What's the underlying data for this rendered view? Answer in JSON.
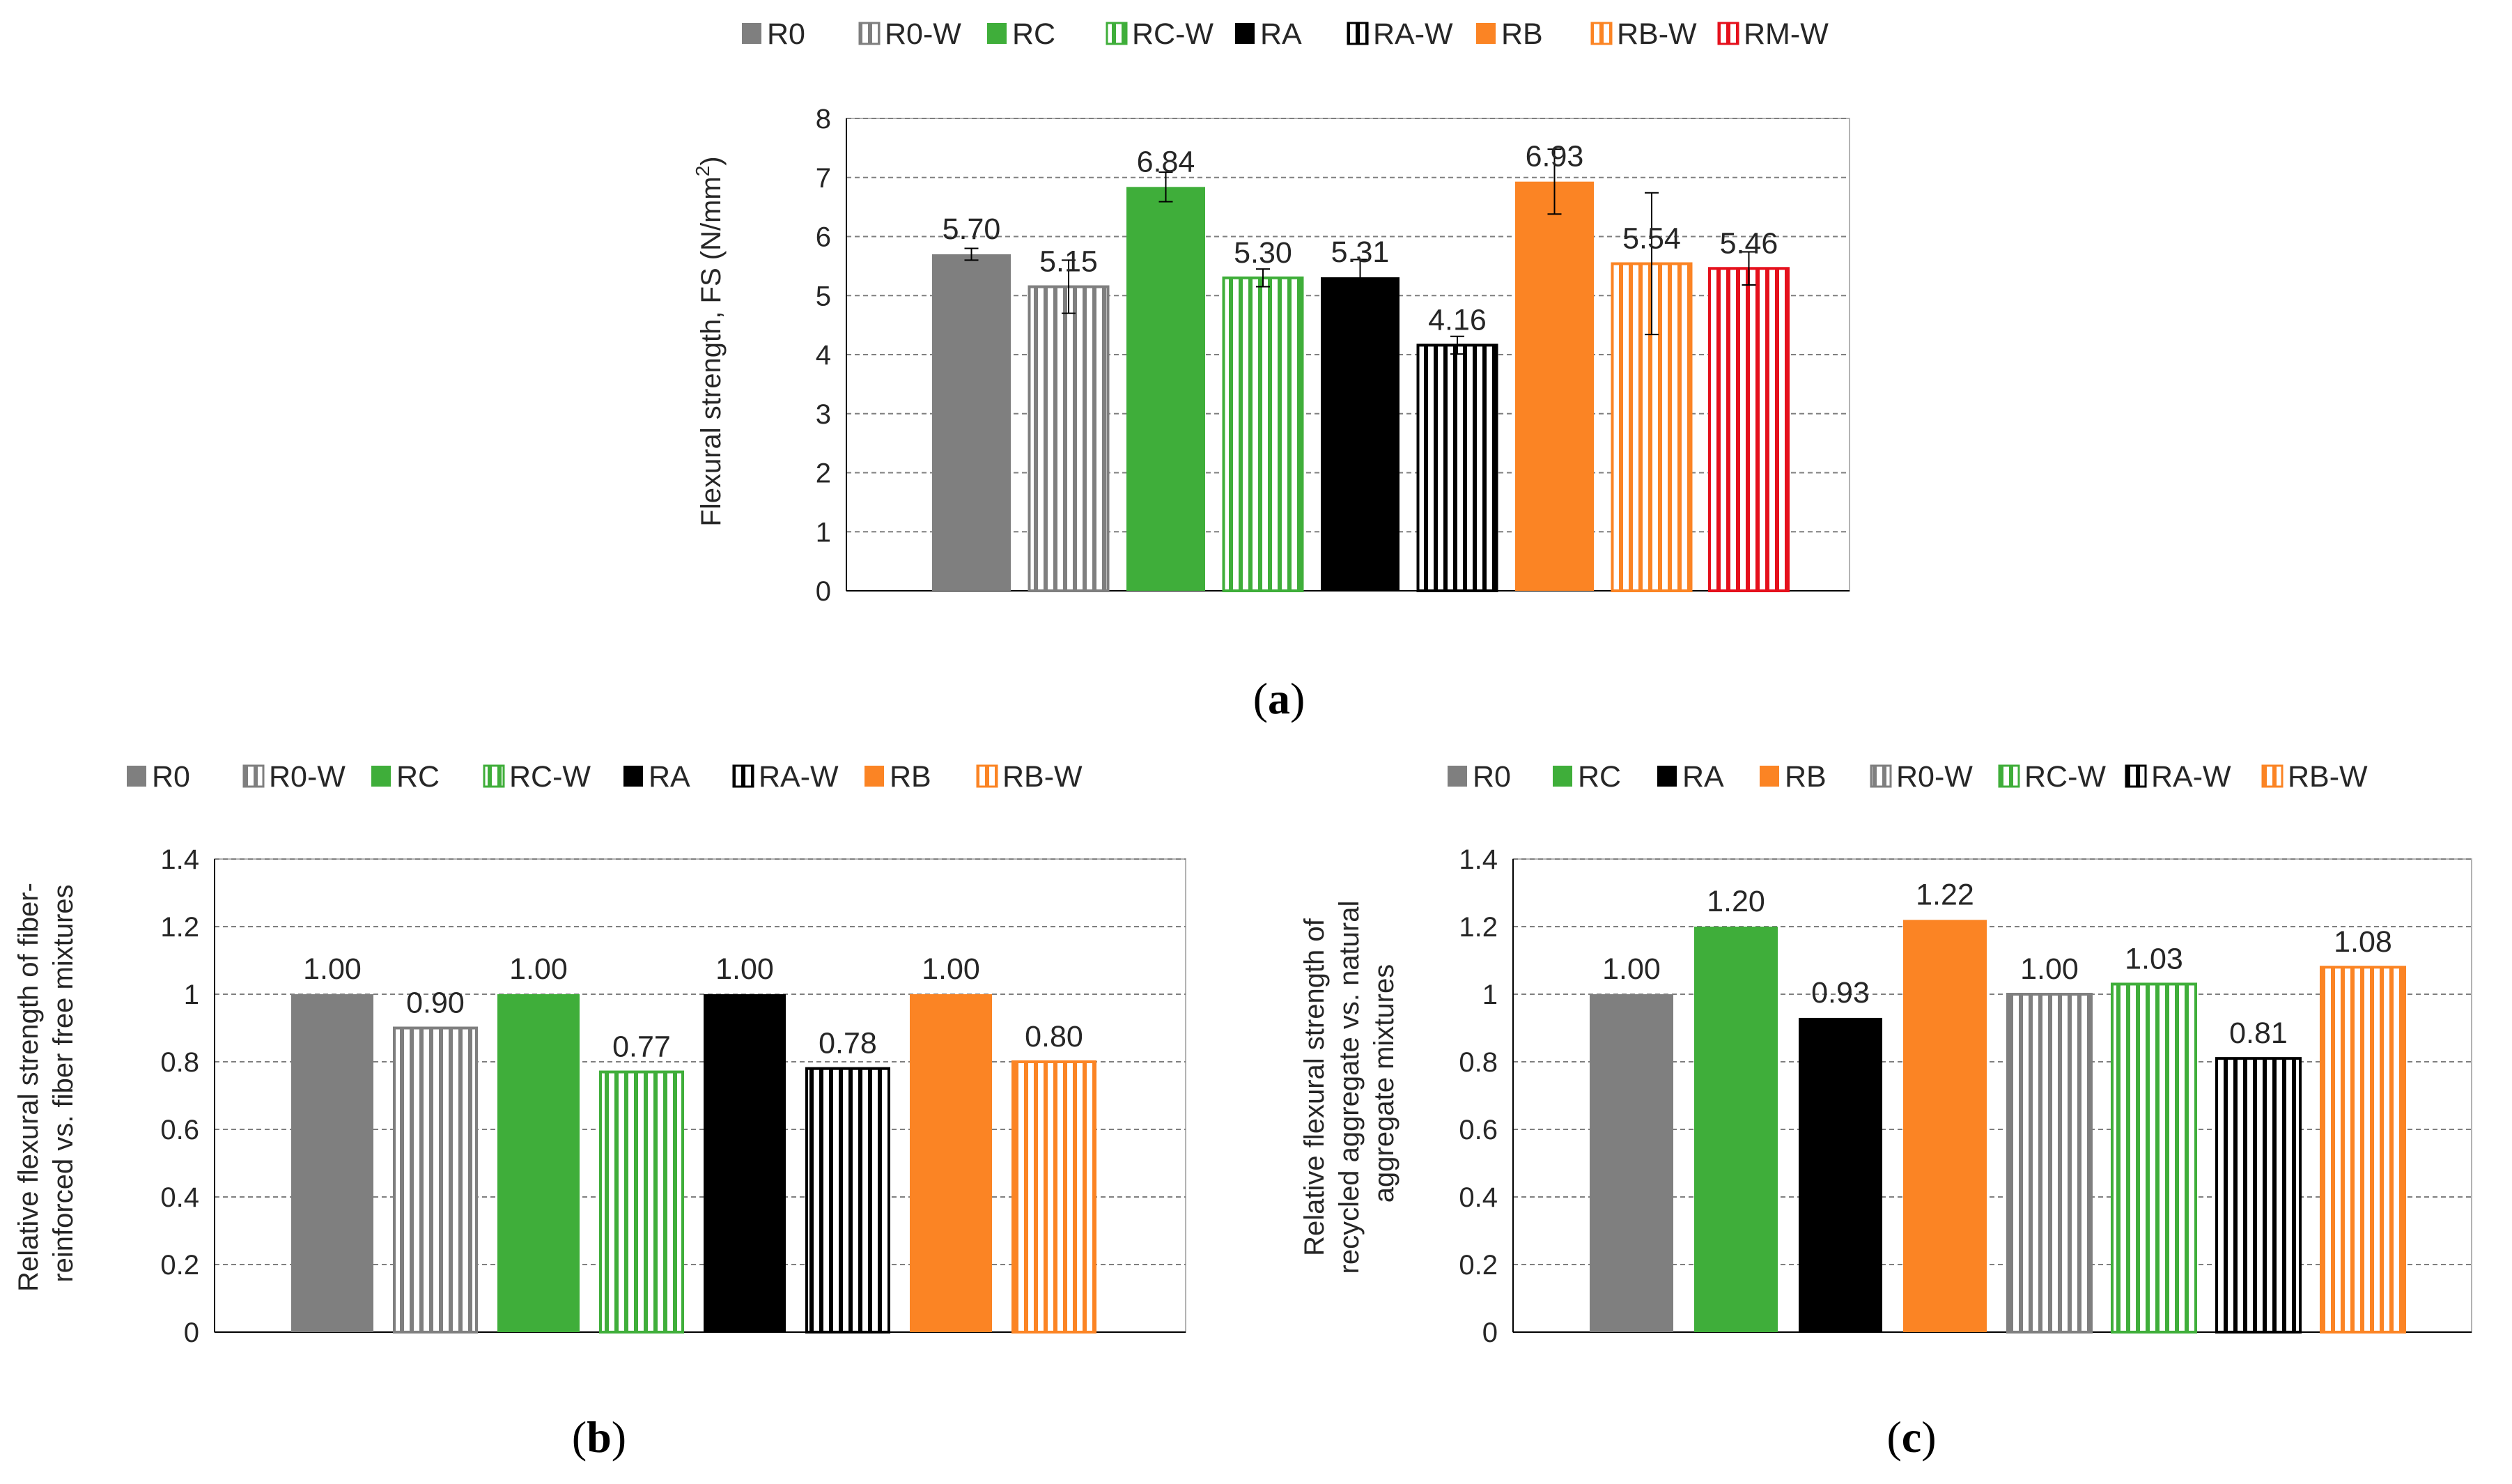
{
  "colors": {
    "R0": "#7f7f7f",
    "R0-W": "#7f7f7f",
    "RC": "#3fae3a",
    "RC-W": "#3fae3a",
    "RA": "#000000",
    "RA-W": "#000000",
    "RB": "#fb8424",
    "RB-W": "#fb8424",
    "RM-W": "#e5101c"
  },
  "chart_data": [
    {
      "id": "a",
      "type": "bar",
      "caption_open": "(",
      "caption_letter": "a",
      "caption_close": ")",
      "ylabel_main": "Flexural strength, FS (N/mm",
      "ylabel_sup": "2",
      "ylabel_close": ")",
      "ylim": [
        0,
        8
      ],
      "yticks": [
        "0",
        "1",
        "2",
        "3",
        "4",
        "5",
        "6",
        "7",
        "8"
      ],
      "grid": true,
      "legend": "top",
      "categories": [
        "R0",
        "R0-W",
        "RC",
        "RC-W",
        "RA",
        "RA-W",
        "RB",
        "RB-W",
        "RM-W"
      ],
      "hatched": [
        false,
        true,
        false,
        true,
        false,
        true,
        false,
        true,
        true
      ],
      "values": [
        5.7,
        5.15,
        6.84,
        5.3,
        5.31,
        4.16,
        6.93,
        5.54,
        5.46
      ],
      "labels": [
        "5.70",
        "5.15",
        "6.84",
        "5.30",
        "5.31",
        "4.16",
        "6.93",
        "5.54",
        "5.46"
      ],
      "errors": [
        0.1,
        0.45,
        0.25,
        0.15,
        0.3,
        0.15,
        0.55,
        1.2,
        0.28
      ]
    },
    {
      "id": "b",
      "type": "bar",
      "caption_open": "(",
      "caption_letter": "b",
      "caption_close": ")",
      "ylabel_line1": "Relative flexural strength of fiber-",
      "ylabel_line2": "reinforced vs. fiber free mixtures",
      "ylim": [
        0,
        1.4
      ],
      "yticks": [
        "0",
        "0.2",
        "0.4",
        "0.6",
        "0.8",
        "1",
        "1.2",
        "1.4"
      ],
      "grid": true,
      "legend": "top",
      "categories": [
        "R0",
        "R0-W",
        "RC",
        "RC-W",
        "RA",
        "RA-W",
        "RB",
        "RB-W"
      ],
      "hatched": [
        false,
        true,
        false,
        true,
        false,
        true,
        false,
        true
      ],
      "values": [
        1.0,
        0.9,
        1.0,
        0.77,
        1.0,
        0.78,
        1.0,
        0.8
      ],
      "labels": [
        "1.00",
        "0.90",
        "1.00",
        "0.77",
        "1.00",
        "0.78",
        "1.00",
        "0.80"
      ]
    },
    {
      "id": "c",
      "type": "bar",
      "caption_open": "(",
      "caption_letter": "c",
      "caption_close": ")",
      "ylabel_line1": "Relative flexural strength of",
      "ylabel_line2": "recycled aggregate  vs. natural",
      "ylabel_line3": "aggregate mixtures",
      "ylim": [
        0,
        1.4
      ],
      "yticks": [
        "0",
        "0.2",
        "0.4",
        "0.6",
        "0.8",
        "1",
        "1.2",
        "1.4"
      ],
      "grid": true,
      "legend": "top",
      "categories": [
        "R0",
        "RC",
        "RA",
        "RB",
        "R0-W",
        "RC-W",
        "RA-W",
        "RB-W"
      ],
      "hatched": [
        false,
        false,
        false,
        false,
        true,
        true,
        true,
        true
      ],
      "values": [
        1.0,
        1.2,
        0.93,
        1.22,
        1.0,
        1.03,
        0.81,
        1.08
      ],
      "labels": [
        "1.00",
        "1.20",
        "0.93",
        "1.22",
        "1.00",
        "1.03",
        "0.81",
        "1.08"
      ]
    }
  ]
}
